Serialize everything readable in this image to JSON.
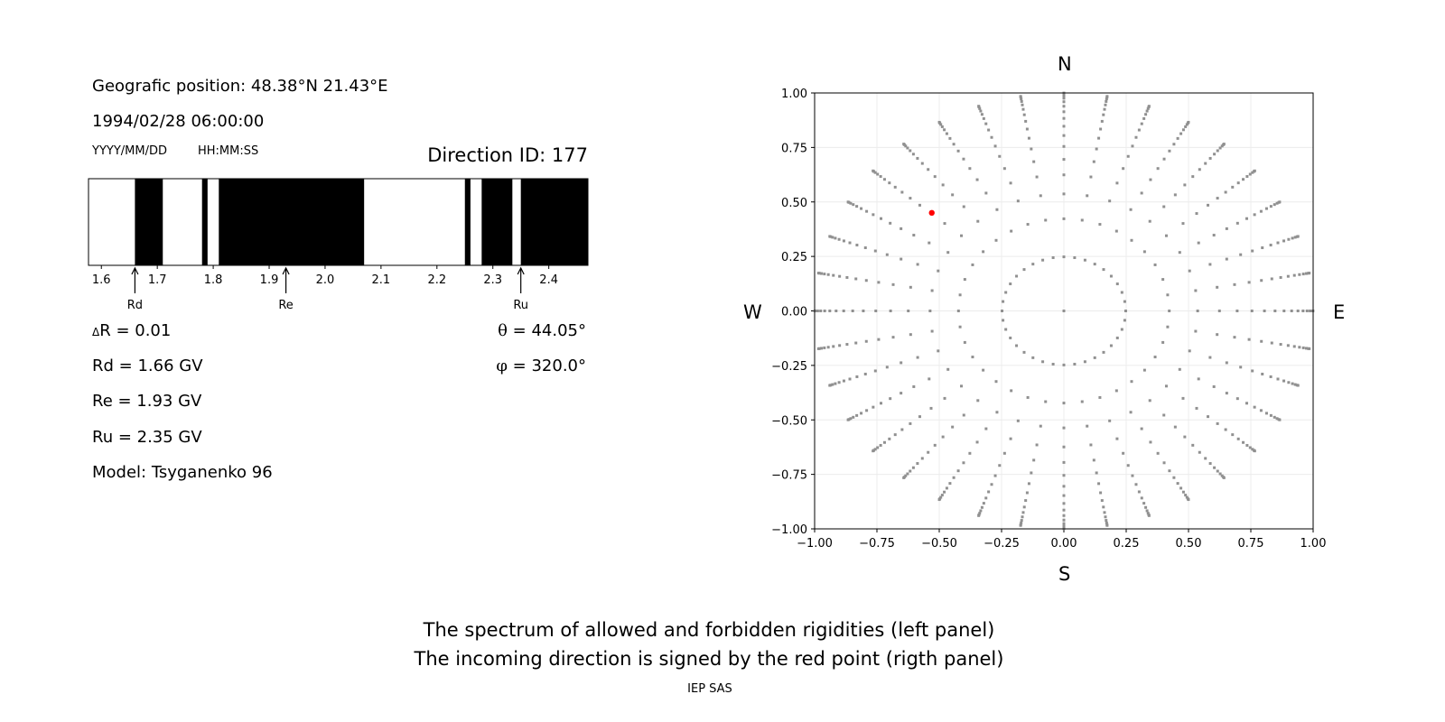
{
  "left_panel": {
    "position": "Geografic position: 48.38°N 21.43°E",
    "datetime": "1994/02/28 06:00:00",
    "date_format": "YYYY/MM/DD",
    "time_format": "HH:MM:SS",
    "direction_id": "Direction ID: 177",
    "delta_symbol": "Δ",
    "delta_r": "R = 0.01",
    "rd": "Rd = 1.66 GV",
    "re": "Re = 1.93 GV",
    "ru": "Ru = 2.35 GV",
    "model": "Model: Tsyganenko 96",
    "theta_symbol": "θ",
    "theta": " = 44.05°",
    "phi_symbol": "φ",
    "phi": " = 320.0°"
  },
  "right_panel": {
    "north": "N",
    "south": "S",
    "west": "W",
    "east": "E"
  },
  "caption": {
    "line1": "The spectrum of allowed and forbidden rigidities (left panel)",
    "line2": "The incoming direction is signed by the red point (rigth panel)",
    "credit": "IEP SAS"
  },
  "chart_data": [
    {
      "type": "heatmap",
      "xlim": [
        1.577,
        2.47
      ],
      "xticks": [
        "1.6",
        "1.7",
        "1.8",
        "1.9",
        "2.0",
        "2.1",
        "2.2",
        "2.3",
        "2.4"
      ],
      "segments": [
        {
          "from": 1.577,
          "to": 1.66,
          "state": "allowed"
        },
        {
          "from": 1.66,
          "to": 1.71,
          "state": "forbidden"
        },
        {
          "from": 1.71,
          "to": 1.78,
          "state": "allowed"
        },
        {
          "from": 1.78,
          "to": 1.79,
          "state": "forbidden"
        },
        {
          "from": 1.79,
          "to": 1.81,
          "state": "allowed"
        },
        {
          "from": 1.81,
          "to": 2.07,
          "state": "forbidden"
        },
        {
          "from": 2.07,
          "to": 2.25,
          "state": "allowed"
        },
        {
          "from": 2.25,
          "to": 2.26,
          "state": "forbidden"
        },
        {
          "from": 2.26,
          "to": 2.28,
          "state": "allowed"
        },
        {
          "from": 2.28,
          "to": 2.335,
          "state": "forbidden"
        },
        {
          "from": 2.335,
          "to": 2.35,
          "state": "allowed"
        },
        {
          "from": 2.35,
          "to": 2.47,
          "state": "forbidden"
        }
      ],
      "markers": [
        {
          "label": "Rd",
          "value": 1.66
        },
        {
          "label": "Re",
          "value": 1.93
        },
        {
          "label": "Ru",
          "value": 2.35
        }
      ],
      "colors": {
        "allowed": "#ffffff",
        "forbidden": "#000000"
      }
    },
    {
      "type": "scatter",
      "xlim": [
        -1,
        1
      ],
      "ylim": [
        -1,
        1
      ],
      "grid": true,
      "xticks": [
        "−1.00",
        "−0.75",
        "−0.50",
        "−0.25",
        "0.00",
        "0.25",
        "0.50",
        "0.75",
        "1.00"
      ],
      "yticks": [
        "−1.00",
        "−0.75",
        "−0.50",
        "−0.25",
        "0.00",
        "0.25",
        "0.50",
        "0.75",
        "1.00"
      ],
      "grid_points": {
        "azimuth_step_deg": 10,
        "cos_zenith_steps": 16,
        "include_center": true,
        "color": "#909090"
      },
      "highlight": {
        "x": -0.53,
        "y": 0.45,
        "color": "#ff0000"
      }
    }
  ]
}
